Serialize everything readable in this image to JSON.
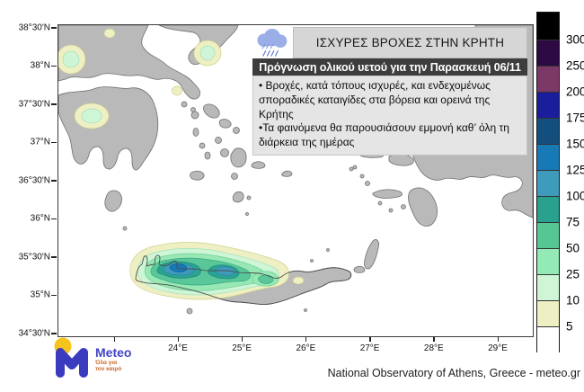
{
  "info_panel": {
    "icon": "rain-cloud",
    "title": "ΙΣΧΥΡΕΣ ΒΡΟΧΕΣ ΣΤΗΝ ΚΡΗΤΗ",
    "subtitle": "Πρόγνωση ολικού υετού για την Παρασκευή 06/11",
    "bullets": [
      "• Βροχές, κατά τόπους ισχυρές, και ενδεχομένως σποραδικές καταιγίδες στα βόρεια και ορεινά της Κρήτης",
      "•Τα φαινόμενα θα παρουσιάσουν εμμονή καθ’ όλη τη διάρκεια της ημέρας"
    ]
  },
  "axes": {
    "lat_labels": [
      "38°30'N",
      "38°N",
      "37°30'N",
      "37°N",
      "36°30'N",
      "36°N",
      "35°30'N",
      "35°N",
      "34°30'N"
    ],
    "lon_labels": [
      "24°E",
      "25°E",
      "26°E",
      "27°E",
      "28°E",
      "29°E"
    ]
  },
  "colorbar": {
    "tick_labels": [
      "300",
      "250",
      "200",
      "175",
      "150",
      "125",
      "100",
      "75",
      "50",
      "25",
      "10",
      "5"
    ],
    "colors_top_to_bottom": [
      "#000000",
      "#2d0a44",
      "#7c3866",
      "#1b1e9c",
      "#134f7e",
      "#1779b5",
      "#3e9bbc",
      "#2aa08f",
      "#57c695",
      "#93eab5",
      "#cdf5d6",
      "#eef0c3",
      "#ffffff"
    ]
  },
  "map": {
    "land_color": "#b9b9b9",
    "sea_color": "#ffffff",
    "contour_levels": [
      5,
      10,
      25,
      50,
      75,
      100,
      125,
      150,
      175,
      200,
      250,
      300
    ],
    "region_of_maximum": "Crete"
  },
  "logo": {
    "name": "Meteo",
    "tagline_line1": "Όλα για",
    "tagline_line2": "τον καιρό"
  },
  "attribution": "National Observatory of Athens, Greece - meteo.gr"
}
